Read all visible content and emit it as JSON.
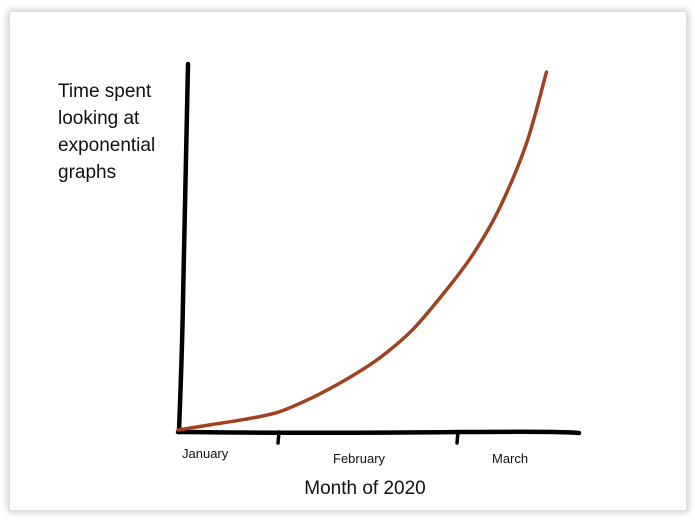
{
  "chart_data": {
    "type": "line",
    "title": "",
    "xlabel": "Month of 2020",
    "ylabel": "Time spent\nlooking at\nexponential\ngraphs",
    "categories": [
      "January",
      "February",
      "March"
    ],
    "series": [
      {
        "color": "#a0421f",
        "x": [
          0.0,
          0.25,
          0.5,
          0.75,
          1.0,
          1.25,
          1.5,
          1.75,
          2.0,
          2.2,
          2.4,
          2.6,
          2.75
        ],
        "y": [
          0.0,
          1.5,
          3.0,
          5.0,
          9.0,
          14.0,
          20.0,
          28.0,
          39.0,
          49.0,
          62.0,
          80.0,
          100.0
        ]
      }
    ],
    "xlim": [
      0,
      3
    ],
    "ylim": [
      0,
      100
    ],
    "grid": false,
    "legend": "none",
    "axis_color": "#000000"
  }
}
